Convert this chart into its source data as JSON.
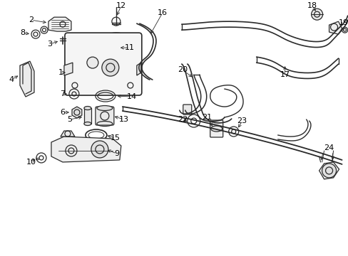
{
  "bg_color": "#ffffff",
  "line_color": "#2a2a2a",
  "label_color": "#000000",
  "label_fontsize": 8,
  "fig_width": 4.89,
  "fig_height": 3.6,
  "dpi": 100
}
